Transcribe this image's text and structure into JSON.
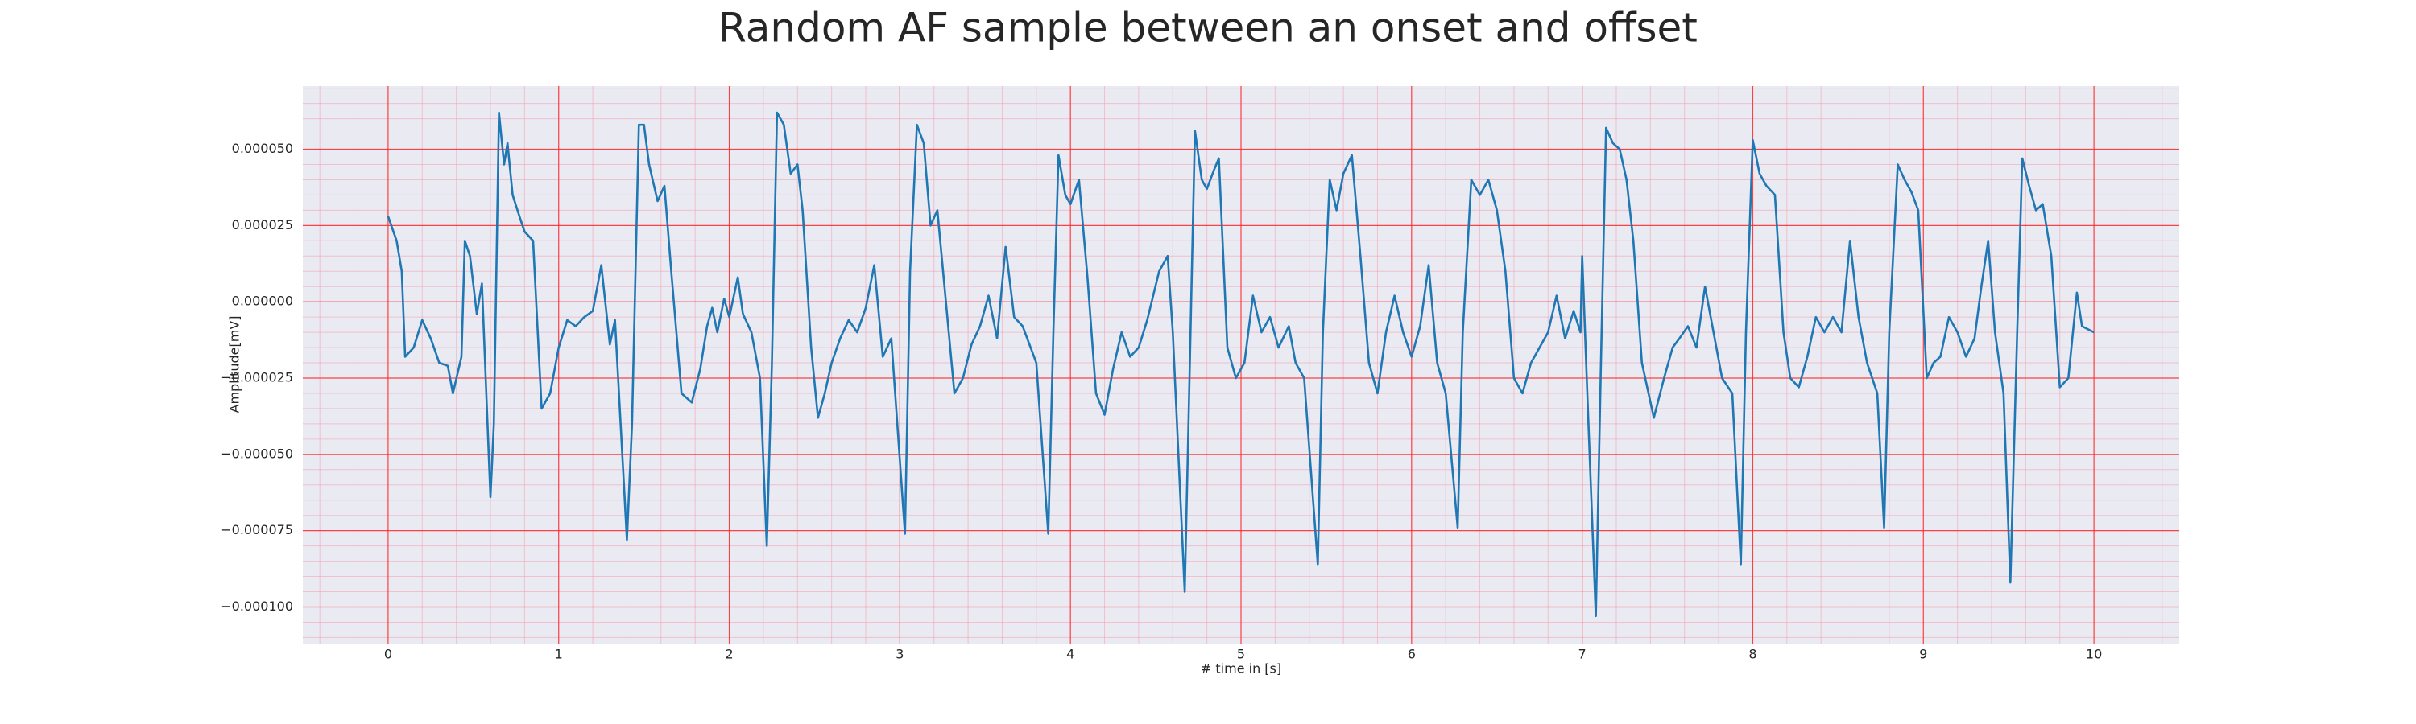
{
  "chart_data": {
    "type": "line",
    "title": "Random AF sample between an onset and offset",
    "xlabel": "# time in [s]",
    "ylabel": "Amplitude[mV]",
    "color": "#1f77b4",
    "grid": true,
    "minor_grid": true,
    "xlim": [
      -0.5,
      10.5
    ],
    "ylim": [
      -0.000112,
      7.07e-05
    ],
    "xticks": [
      0,
      1,
      2,
      3,
      4,
      5,
      6,
      7,
      8,
      9,
      10
    ],
    "yticks": [
      {
        "value": -0.0001,
        "label": "−0.000100"
      },
      {
        "value": -7.5e-05,
        "label": "−0.000075"
      },
      {
        "value": -5e-05,
        "label": "−0.000050"
      },
      {
        "value": -2.5e-05,
        "label": "−0.000025"
      },
      {
        "value": 0,
        "label": "0.000000"
      },
      {
        "value": 2.5e-05,
        "label": "0.000025"
      },
      {
        "value": 5e-05,
        "label": "0.000050"
      }
    ],
    "x": [
      0,
      0.05,
      0.08,
      0.1,
      0.15,
      0.2,
      0.25,
      0.3,
      0.35,
      0.38,
      0.43,
      0.45,
      0.48,
      0.52,
      0.55,
      0.6,
      0.62,
      0.65,
      0.68,
      0.7,
      0.73,
      0.77,
      0.8,
      0.85,
      0.9,
      0.95,
      1.0,
      1.05,
      1.1,
      1.15,
      1.2,
      1.25,
      1.3,
      1.33,
      1.4,
      1.43,
      1.47,
      1.5,
      1.53,
      1.58,
      1.62,
      1.66,
      1.72,
      1.78,
      1.83,
      1.87,
      1.9,
      1.93,
      1.97,
      2.0,
      2.05,
      2.08,
      2.13,
      2.18,
      2.22,
      2.25,
      2.28,
      2.32,
      2.36,
      2.4,
      2.43,
      2.48,
      2.52,
      2.56,
      2.6,
      2.65,
      2.7,
      2.75,
      2.8,
      2.85,
      2.9,
      2.95,
      3.03,
      3.06,
      3.1,
      3.14,
      3.18,
      3.22,
      3.27,
      3.32,
      3.37,
      3.42,
      3.47,
      3.52,
      3.57,
      3.62,
      3.67,
      3.72,
      3.8,
      3.87,
      3.9,
      3.93,
      3.97,
      4.0,
      4.05,
      4.1,
      4.15,
      4.2,
      4.25,
      4.3,
      4.35,
      4.4,
      4.45,
      4.52,
      4.57,
      4.6,
      4.67,
      4.7,
      4.73,
      4.77,
      4.8,
      4.84,
      4.87,
      4.92,
      4.97,
      5.02,
      5.07,
      5.12,
      5.17,
      5.22,
      5.28,
      5.32,
      5.37,
      5.45,
      5.48,
      5.52,
      5.56,
      5.6,
      5.65,
      5.7,
      5.75,
      5.8,
      5.85,
      5.9,
      5.95,
      6.0,
      6.05,
      6.1,
      6.15,
      6.2,
      6.27,
      6.3,
      6.35,
      6.4,
      6.45,
      6.5,
      6.55,
      6.6,
      6.65,
      6.7,
      6.75,
      6.8,
      6.85,
      6.9,
      6.95,
      6.99,
      7.0,
      7.03,
      7.08,
      7.11,
      7.14,
      7.18,
      7.22,
      7.26,
      7.3,
      7.35,
      7.42,
      7.48,
      7.53,
      7.57,
      7.62,
      7.67,
      7.72,
      7.77,
      7.82,
      7.88,
      7.93,
      7.96,
      8.0,
      8.04,
      8.08,
      8.13,
      8.18,
      8.22,
      8.27,
      8.32,
      8.37,
      8.42,
      8.47,
      8.52,
      8.57,
      8.62,
      8.67,
      8.73,
      8.77,
      8.8,
      8.85,
      8.89,
      8.93,
      8.97,
      9.02,
      9.06,
      9.1,
      9.15,
      9.2,
      9.25,
      9.3,
      9.34,
      9.38,
      9.42,
      9.47,
      9.51,
      9.55,
      9.58,
      9.62,
      9.66,
      9.7,
      9.75,
      9.8,
      9.85,
      9.9,
      9.93,
      10.0
    ],
    "values": [
      2.8e-05,
      2e-05,
      1e-05,
      -1.8e-05,
      -1.5e-05,
      -6e-06,
      -1.2e-05,
      -2e-05,
      -2.1e-05,
      -3e-05,
      -1.8e-05,
      2e-05,
      1.5e-05,
      -4e-06,
      6e-06,
      -6.4e-05,
      -4e-05,
      6.2e-05,
      4.5e-05,
      5.2e-05,
      3.5e-05,
      2.8e-05,
      2.3e-05,
      2e-05,
      -3.5e-05,
      -3e-05,
      -1.5e-05,
      -6e-06,
      -8e-06,
      -5e-06,
      -3e-06,
      1.2e-05,
      -1.4e-05,
      -6e-06,
      -7.8e-05,
      -4e-05,
      5.8e-05,
      5.8e-05,
      4.5e-05,
      3.3e-05,
      3.8e-05,
      1e-05,
      -3e-05,
      -3.3e-05,
      -2.2e-05,
      -8e-06,
      -2e-06,
      -1e-05,
      1e-06,
      -5e-06,
      8e-06,
      -4e-06,
      -1e-05,
      -2.5e-05,
      -8e-05,
      -2e-05,
      6.2e-05,
      5.8e-05,
      4.2e-05,
      4.5e-05,
      3e-05,
      -1.5e-05,
      -3.8e-05,
      -3e-05,
      -2e-05,
      -1.2e-05,
      -6e-06,
      -1e-05,
      -2e-06,
      1.2e-05,
      -1.8e-05,
      -1.2e-05,
      -7.6e-05,
      1e-05,
      5.8e-05,
      5.2e-05,
      2.5e-05,
      3e-05,
      0,
      -3e-05,
      -2.5e-05,
      -1.4e-05,
      -8e-06,
      2e-06,
      -1.2e-05,
      1.8e-05,
      -5e-06,
      -8e-06,
      -2e-05,
      -7.6e-05,
      -1e-05,
      4.8e-05,
      3.5e-05,
      3.2e-05,
      4e-05,
      8e-06,
      -3e-05,
      -3.7e-05,
      -2.2e-05,
      -1e-05,
      -1.8e-05,
      -1.5e-05,
      -6e-06,
      1e-05,
      1.5e-05,
      -1e-05,
      -9.5e-05,
      -2e-05,
      5.6e-05,
      4e-05,
      3.7e-05,
      4.3e-05,
      4.7e-05,
      -1.5e-05,
      -2.5e-05,
      -2e-05,
      2e-06,
      -1e-05,
      -5e-06,
      -1.5e-05,
      -8e-06,
      -2e-05,
      -2.5e-05,
      -8.6e-05,
      -1e-05,
      4e-05,
      3e-05,
      4.2e-05,
      4.8e-05,
      1.5e-05,
      -2e-05,
      -3e-05,
      -1e-05,
      2e-06,
      -1e-05,
      -1.8e-05,
      -8e-06,
      1.2e-05,
      -2e-05,
      -3e-05,
      -7.4e-05,
      -1e-05,
      4e-05,
      3.5e-05,
      4e-05,
      3e-05,
      1e-05,
      -2.5e-05,
      -3e-05,
      -2e-05,
      -1.5e-05,
      -1e-05,
      2e-06,
      -1.2e-05,
      -3e-06,
      -1e-05,
      1.5e-05,
      -3e-05,
      -0.000103,
      -2e-05,
      5.7e-05,
      5.2e-05,
      5e-05,
      4e-05,
      2e-05,
      -2e-05,
      -3.8e-05,
      -2.5e-05,
      -1.5e-05,
      -1.2e-05,
      -8e-06,
      -1.5e-05,
      5e-06,
      -1e-05,
      -2.5e-05,
      -3e-05,
      -8.6e-05,
      -1e-05,
      5.3e-05,
      4.2e-05,
      3.8e-05,
      3.5e-05,
      -1e-05,
      -2.5e-05,
      -2.8e-05,
      -1.8e-05,
      -5e-06,
      -1e-05,
      -5e-06,
      -1e-05,
      2e-05,
      -5e-06,
      -2e-05,
      -3e-05,
      -7.4e-05,
      -1e-05,
      4.5e-05,
      4e-05,
      3.6e-05,
      3e-05,
      -2.5e-05,
      -2e-05,
      -1.8e-05,
      -5e-06,
      -1e-05,
      -1.8e-05,
      -1.2e-05,
      5e-06,
      2e-05,
      -1e-05,
      -3e-05,
      -9.2e-05,
      -1e-05,
      4.7e-05,
      3.8e-05,
      3e-05,
      3.2e-05,
      1.5e-05,
      -2.8e-05,
      -2.5e-05,
      3e-06,
      -8e-06,
      -1e-05
    ]
  }
}
